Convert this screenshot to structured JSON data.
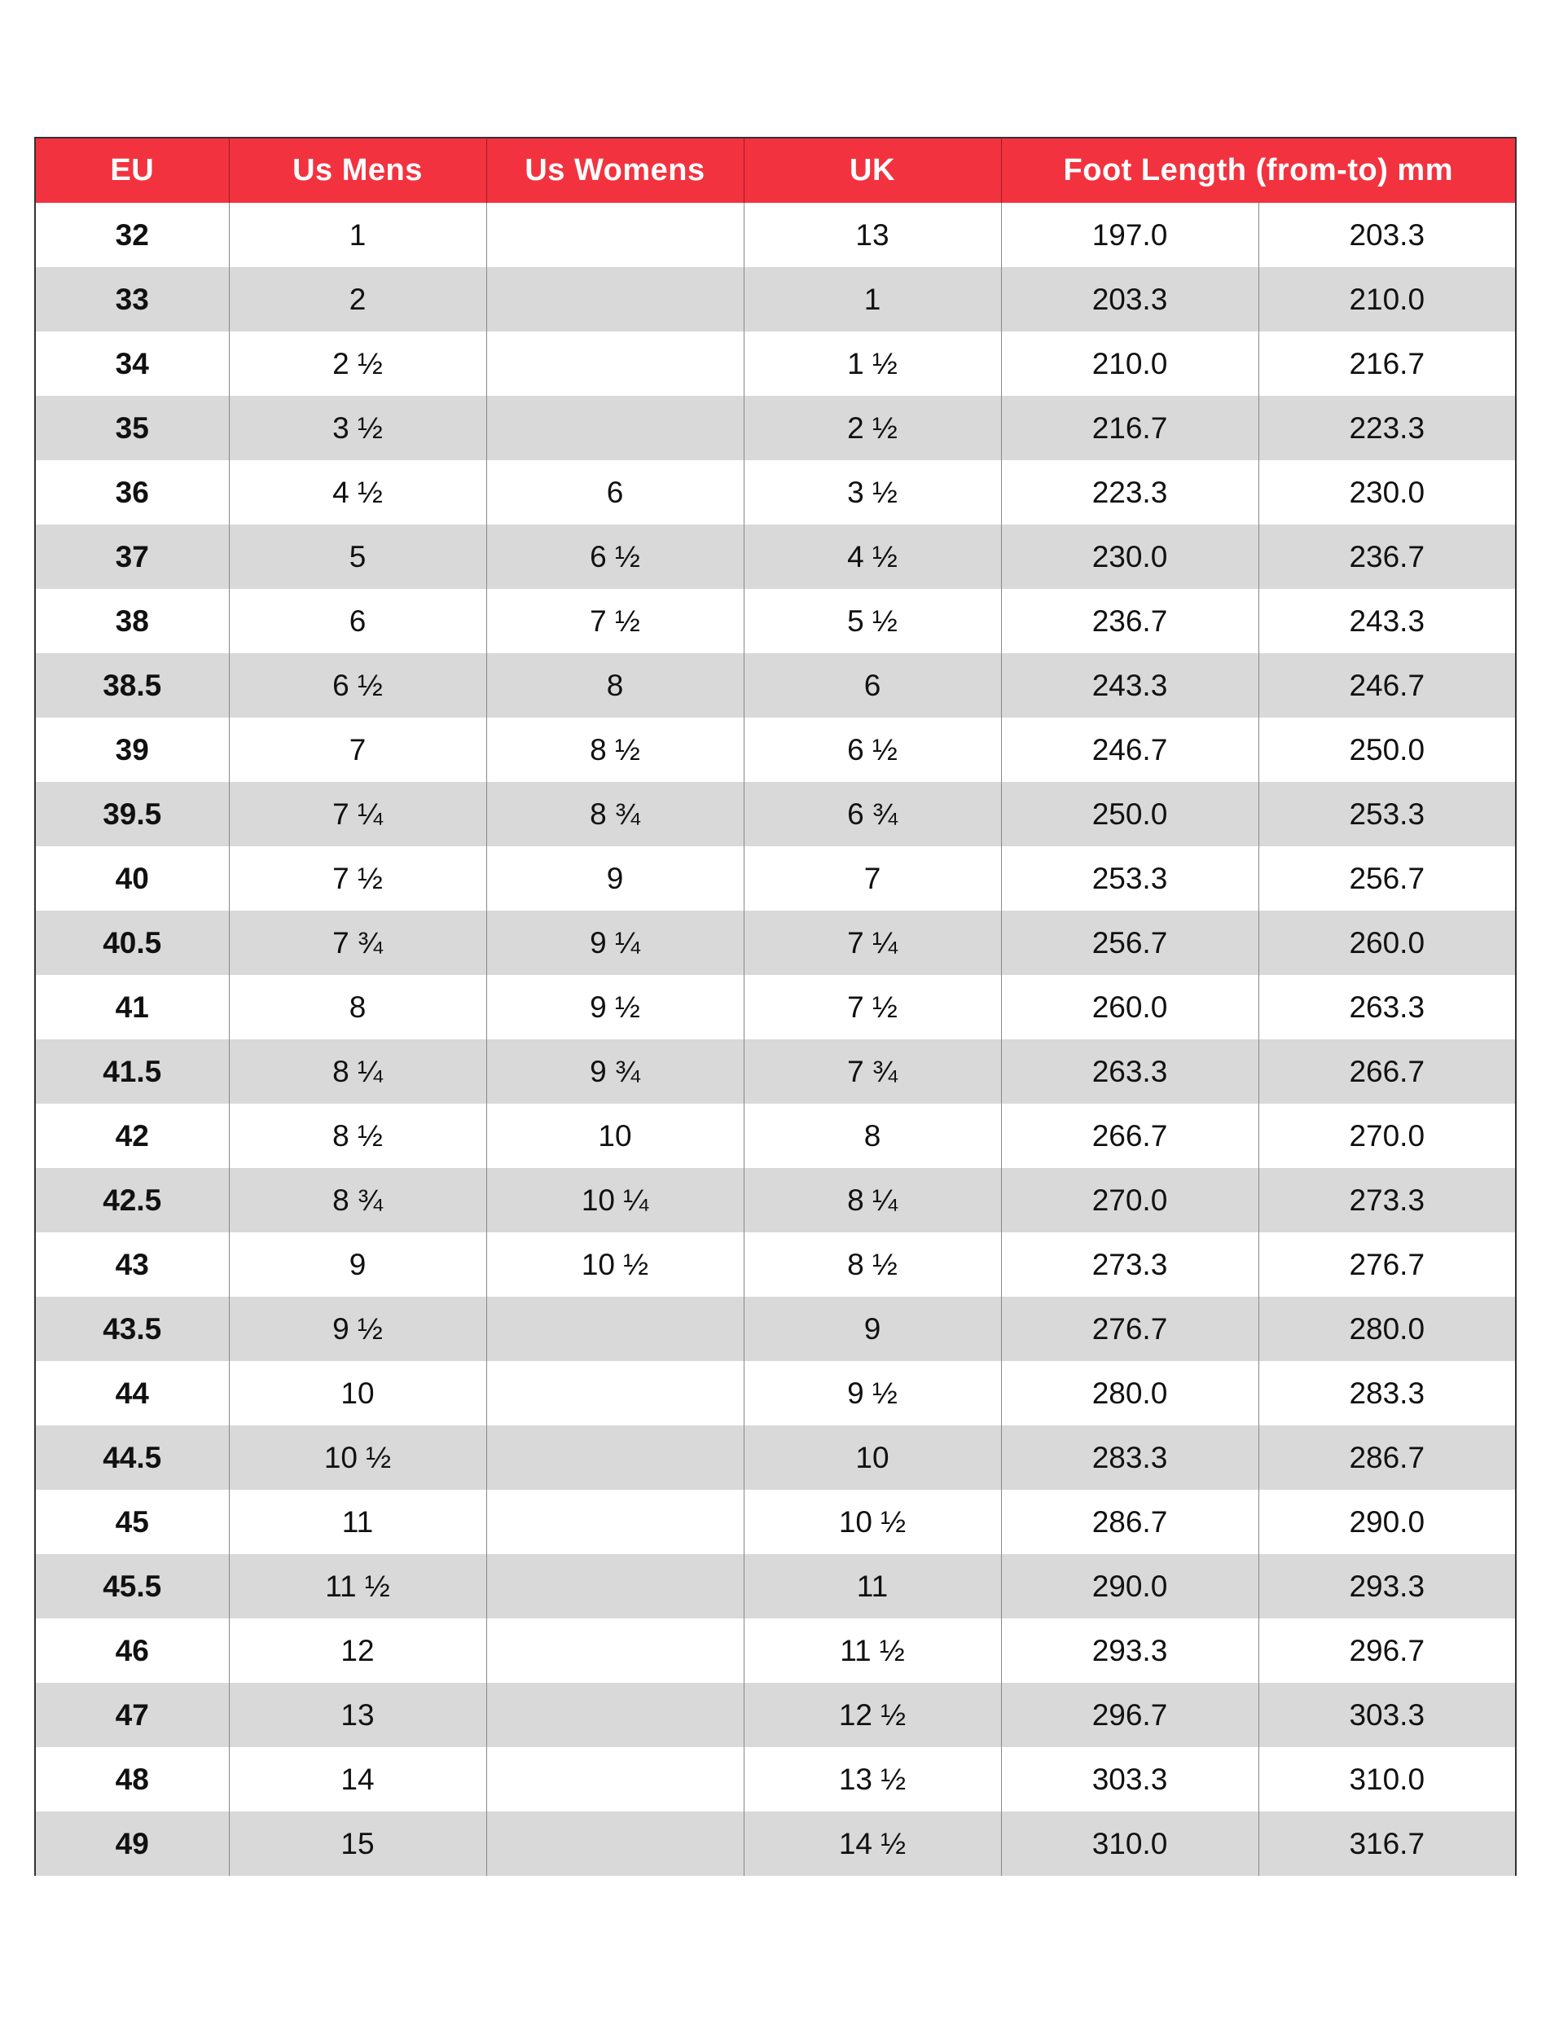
{
  "header_colors": {
    "header_bg": "#f2333f",
    "alt_row_bg": "#d9d9d9"
  },
  "headers": [
    "EU",
    "Us Mens",
    "Us Womens",
    "UK",
    "Foot Length (from-to) mm"
  ],
  "rows": [
    [
      "32",
      "1",
      "",
      "13",
      "197.0",
      "203.3"
    ],
    [
      "33",
      "2",
      "",
      "1",
      "203.3",
      "210.0"
    ],
    [
      "34",
      "2 ½",
      "",
      "1 ½",
      "210.0",
      "216.7"
    ],
    [
      "35",
      "3 ½",
      "",
      "2 ½",
      "216.7",
      "223.3"
    ],
    [
      "36",
      "4 ½",
      "6",
      "3 ½",
      "223.3",
      "230.0"
    ],
    [
      "37",
      "5",
      "6 ½",
      "4 ½",
      "230.0",
      "236.7"
    ],
    [
      "38",
      "6",
      "7 ½",
      "5 ½",
      "236.7",
      "243.3"
    ],
    [
      "38.5",
      "6 ½",
      "8",
      "6",
      "243.3",
      "246.7"
    ],
    [
      "39",
      "7",
      "8 ½",
      "6 ½",
      "246.7",
      "250.0"
    ],
    [
      "39.5",
      "7 ¼",
      "8 ¾",
      "6 ¾",
      "250.0",
      "253.3"
    ],
    [
      "40",
      "7 ½",
      "9",
      "7",
      "253.3",
      "256.7"
    ],
    [
      "40.5",
      "7 ¾",
      "9 ¼",
      "7 ¼",
      "256.7",
      "260.0"
    ],
    [
      "41",
      "8",
      "9 ½",
      "7 ½",
      "260.0",
      "263.3"
    ],
    [
      "41.5",
      "8 ¼",
      "9 ¾",
      "7 ¾",
      "263.3",
      "266.7"
    ],
    [
      "42",
      "8 ½",
      "10",
      "8",
      "266.7",
      "270.0"
    ],
    [
      "42.5",
      "8 ¾",
      "10 ¼",
      "8 ¼",
      "270.0",
      "273.3"
    ],
    [
      "43",
      "9",
      "10 ½",
      "8 ½",
      "273.3",
      "276.7"
    ],
    [
      "43.5",
      "9 ½",
      "",
      "9",
      "276.7",
      "280.0"
    ],
    [
      "44",
      "10",
      "",
      "9 ½",
      "280.0",
      "283.3"
    ],
    [
      "44.5",
      "10 ½",
      "",
      "10",
      "283.3",
      "286.7"
    ],
    [
      "45",
      "11",
      "",
      "10 ½",
      "286.7",
      "290.0"
    ],
    [
      "45.5",
      "11 ½",
      "",
      "11",
      "290.0",
      "293.3"
    ],
    [
      "46",
      "12",
      "",
      "11 ½",
      "293.3",
      "296.7"
    ],
    [
      "47",
      "13",
      "",
      "12 ½",
      "296.7",
      "303.3"
    ],
    [
      "48",
      "14",
      "",
      "13 ½",
      "303.3",
      "310.0"
    ],
    [
      "49",
      "15",
      "",
      "14 ½",
      "310.0",
      "316.7"
    ]
  ]
}
